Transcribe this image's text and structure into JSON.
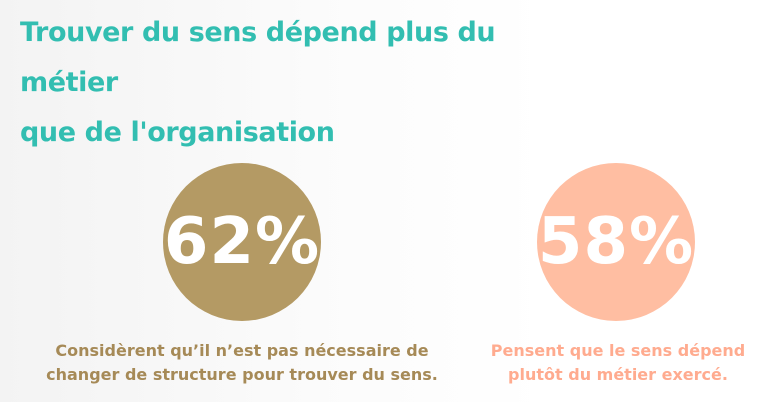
{
  "header": {
    "title_line1": "Trouver du sens dépend plus du métier",
    "title_line2": "que de l'organisation"
  },
  "stats": [
    {
      "value": "62%",
      "color": "#b49a64",
      "caption_line1": "Considèrent qu’il n’est pas nécessaire de",
      "caption_line2": "changer de structure pour trouver du sens."
    },
    {
      "value": "58%",
      "color": "#ffbea2",
      "caption_line1": "Pensent que le sens dépend",
      "caption_line2": "plutôt du métier exercé."
    }
  ],
  "colors": {
    "title": "#32beb1",
    "left_caption": "#a68a57",
    "right_caption": "#ffab8f"
  }
}
